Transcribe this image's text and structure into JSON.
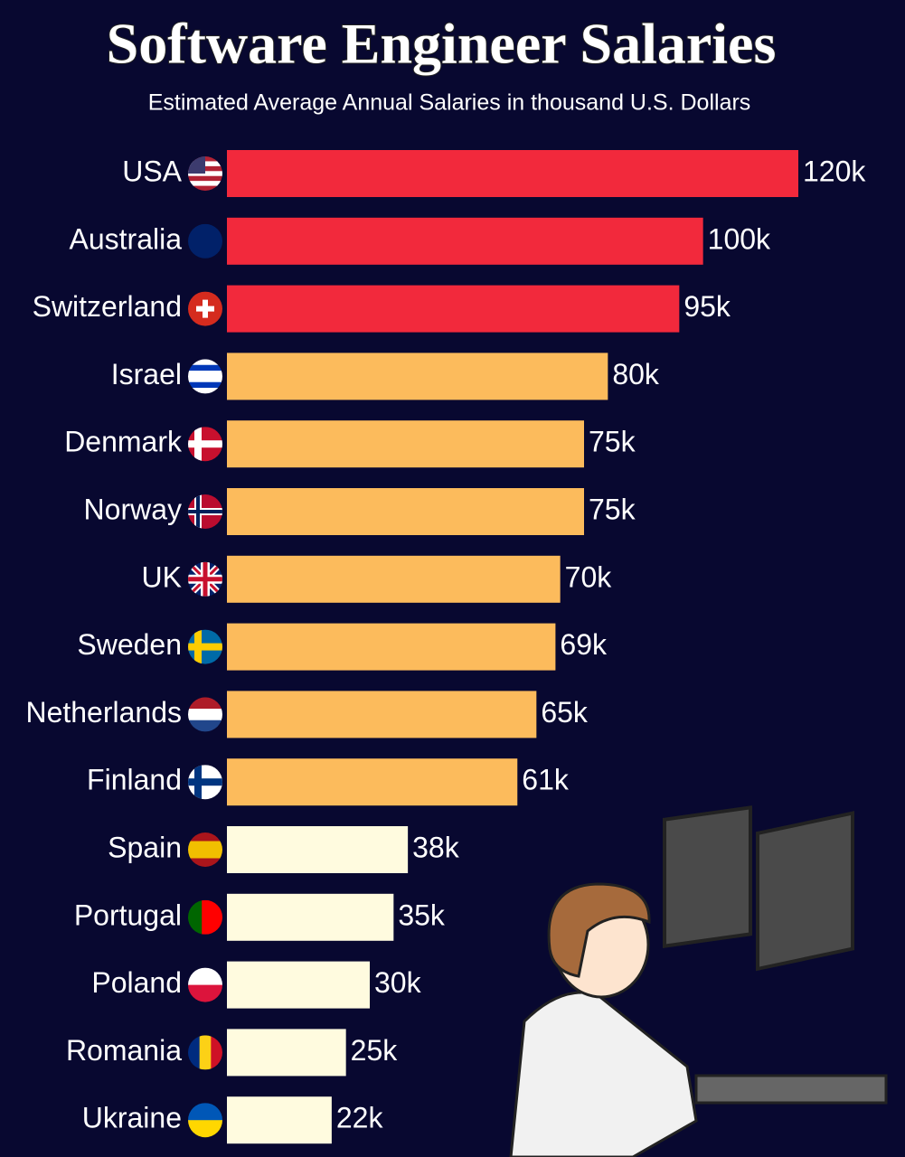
{
  "chart_data": {
    "type": "bar",
    "orientation": "horizontal",
    "title": "Software Engineer Salaries",
    "subtitle": "Estimated Average Annual Salaries in thousand U.S. Dollars",
    "categories": [
      "USA",
      "Australia",
      "Switzerland",
      "Israel",
      "Denmark",
      "Norway",
      "UK",
      "Sweden",
      "Netherlands",
      "Finland",
      "Spain",
      "Portugal",
      "Poland",
      "Romania",
      "Ukraine"
    ],
    "values": [
      120,
      100,
      95,
      80,
      75,
      75,
      70,
      69,
      65,
      61,
      38,
      35,
      30,
      25,
      22
    ],
    "value_labels": [
      "120k",
      "100k",
      "95k",
      "80k",
      "75k",
      "75k",
      "70k",
      "69k",
      "65k",
      "61k",
      "38k",
      "35k",
      "30k",
      "25k",
      "22k"
    ],
    "colors": [
      "#f2293c",
      "#f2293c",
      "#f2293c",
      "#fcbb5c",
      "#fcbb5c",
      "#fcbb5c",
      "#fcbb5c",
      "#fcbb5c",
      "#fcbb5c",
      "#fcbb5c",
      "#fffbdf",
      "#fffbdf",
      "#fffbdf",
      "#fffbdf",
      "#fffbdf"
    ]
  }
}
